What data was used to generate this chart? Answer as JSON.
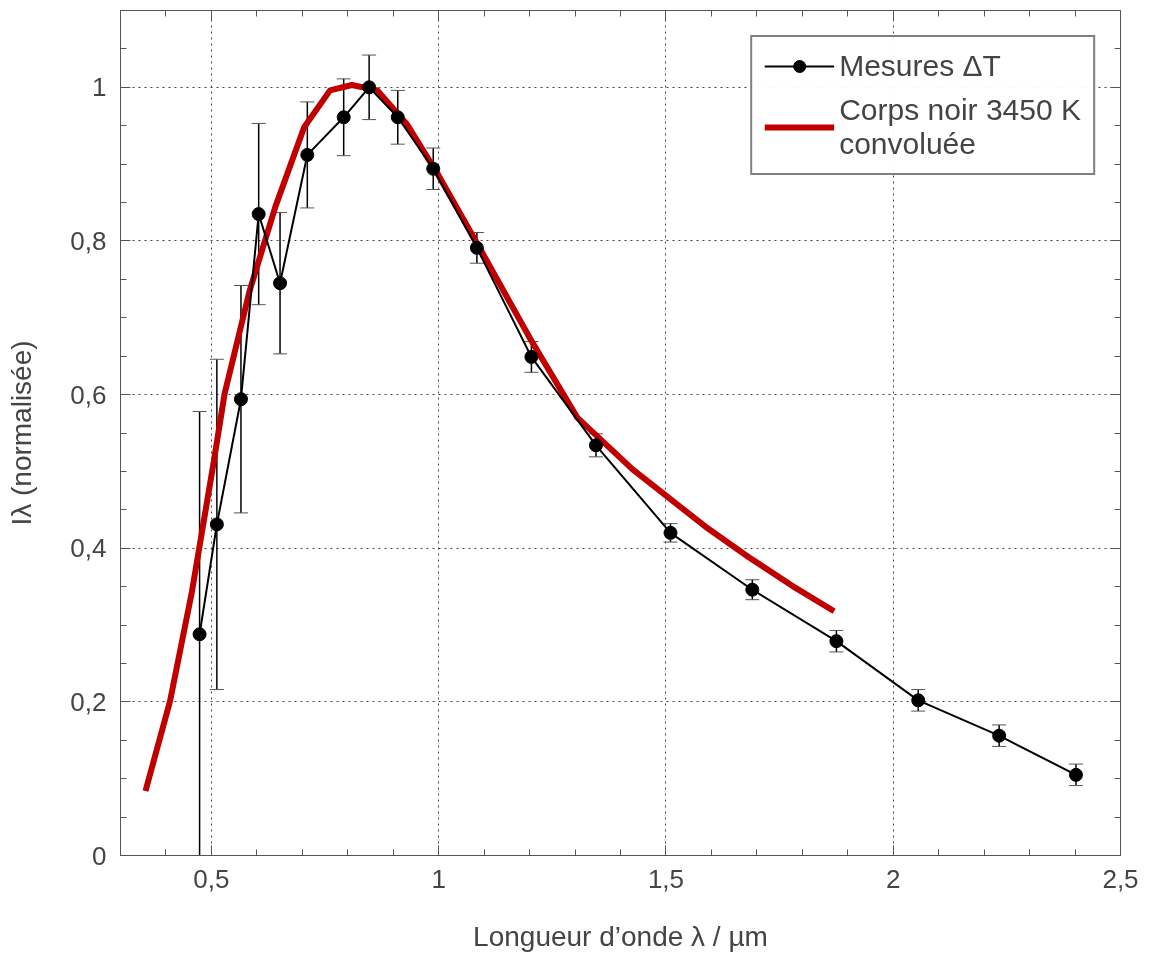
{
  "chart_data": {
    "type": "line",
    "xlabel": "Longueur d’onde λ / µm",
    "ylabel": "Iλ (normalisée)",
    "xlim": [
      0.3,
      2.5
    ],
    "ylim": [
      0,
      1.1
    ],
    "xticks": [
      {
        "value": 0.5,
        "label": "0,5"
      },
      1,
      {
        "value": 1.5,
        "label": "1,5"
      },
      2,
      {
        "value": 2.5,
        "label": "2,5"
      }
    ],
    "yticks": [
      0,
      {
        "value": 0.2,
        "label": "0,2"
      },
      {
        "value": 0.4,
        "label": "0,4"
      },
      {
        "value": 0.6,
        "label": "0,6"
      },
      {
        "value": 0.8,
        "label": "0,8"
      },
      1
    ],
    "grid": true,
    "legend": "top right",
    "line_style": "solid",
    "series": [
      {
        "name": "Mesures ΔT",
        "color": "#000000",
        "marker": "circle",
        "x": [
          0.474,
          0.512,
          0.565,
          0.604,
          0.651,
          0.711,
          0.791,
          0.847,
          0.91,
          0.988,
          1.084,
          1.204,
          1.346,
          1.51,
          1.69,
          1.875,
          2.055,
          2.233,
          2.402
        ],
        "values": [
          0.288,
          0.431,
          0.594,
          0.835,
          0.745,
          0.912,
          0.961,
          1.0,
          0.961,
          0.894,
          0.791,
          0.649,
          0.534,
          0.42,
          0.346,
          0.279,
          0.202,
          0.156,
          0.105
        ],
        "errors": [
          0.29,
          0.215,
          0.148,
          0.118,
          0.092,
          0.069,
          0.05,
          0.042,
          0.035,
          0.027,
          0.02,
          0.02,
          0.015,
          0.012,
          0.013,
          0.014,
          0.014,
          0.014,
          0.014
        ]
      },
      {
        "name": "Corps noir 3450 K\nconvoluée",
        "color": "#c00000",
        "marker": "none",
        "x": [
          0.355,
          0.409,
          0.457,
          0.505,
          0.529,
          0.584,
          0.641,
          0.704,
          0.761,
          0.809,
          0.865,
          0.93,
          1.0,
          1.089,
          1.202,
          1.305,
          1.426,
          1.587,
          1.683,
          1.786,
          1.87
        ],
        "values": [
          0.084,
          0.201,
          0.343,
          0.512,
          0.601,
          0.735,
          0.845,
          0.948,
          0.996,
          1.003,
          0.996,
          0.952,
          0.885,
          0.792,
          0.672,
          0.57,
          0.503,
          0.428,
          0.388,
          0.348,
          0.318
        ]
      }
    ]
  }
}
